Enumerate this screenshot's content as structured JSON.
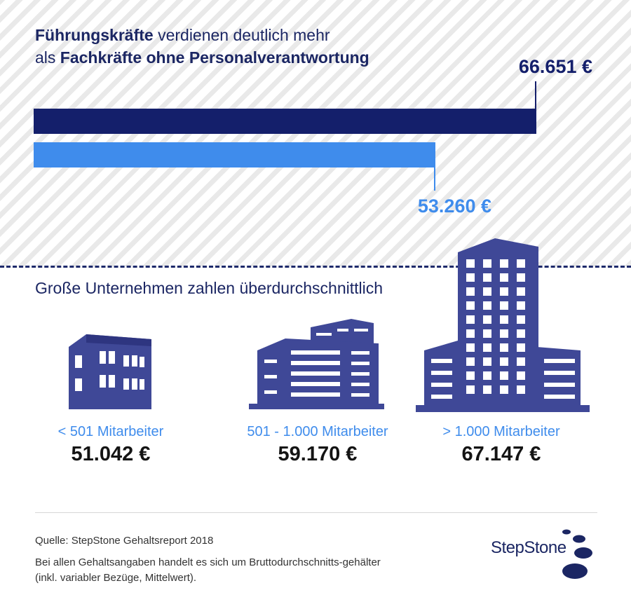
{
  "title": {
    "part1_bold": "Führungskräfte",
    "part2": " verdienen deutlich mehr",
    "part3": "als ",
    "part4_bold": "Fachkräfte ohne Personalverantwortung"
  },
  "chart_data": {
    "type": "bar",
    "orientation": "horizontal",
    "max": 66651,
    "series": [
      {
        "key": "lead",
        "value": 66651,
        "label": "66.651 €",
        "color": "#141f6b"
      },
      {
        "key": "spec",
        "value": 53260,
        "label": "53.260 €",
        "color": "#3f8cec"
      }
    ]
  },
  "subtitle": "Große Unternehmen zahlen überdurchschnittlich",
  "companies": [
    {
      "label": "< 501 Mitarbeiter",
      "value": "51.042 €"
    },
    {
      "label": "501 - 1.000 Mitarbeiter",
      "value": "59.170 €"
    },
    {
      "label": "> 1.000 Mitarbeiter",
      "value": "67.147 €"
    }
  ],
  "footer": {
    "source": "Quelle: StepStone Gehaltsreport 2018",
    "note": "Bei allen Gehaltsangaben handelt es sich um Bruttodurchschnitts-gehälter (inkl. variabler Bezüge, Mittelwert)."
  },
  "logo": {
    "text": "StepStone"
  },
  "colors": {
    "navy": "#141f6b",
    "blue": "#3f8cec",
    "building": "#3f4897"
  }
}
